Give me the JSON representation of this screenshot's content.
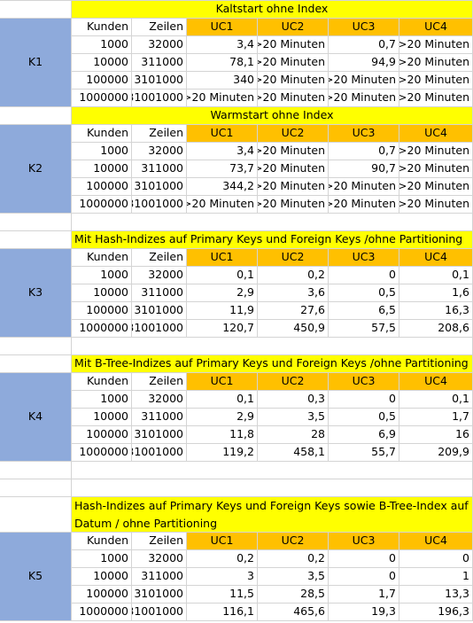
{
  "headers": {
    "kunden": "Kunden",
    "zeilen": "Zeilen",
    "uc": [
      "UC1",
      "UC2",
      "UC3",
      "UC4"
    ]
  },
  "sections": [
    {
      "label": "K1",
      "title": "Kaltstart ohne Index",
      "rows": [
        [
          "1000",
          "32000",
          "3,4",
          ">20 Minuten",
          "0,7",
          ">20 Minuten"
        ],
        [
          "10000",
          "311000",
          "78,1",
          ">20 Minuten",
          "94,9",
          ">20 Minuten"
        ],
        [
          "100000",
          "3101000",
          "340",
          ">20 Minuten",
          ">20 Minuten",
          ">20 Minuten"
        ],
        [
          "1000000",
          "31001000",
          ">20 Minuten",
          ">20 Minuten",
          ">20 Minuten",
          ">20 Minuten"
        ]
      ]
    },
    {
      "label": "K2",
      "title": "Warmstart ohne Index",
      "rows": [
        [
          "1000",
          "32000",
          "3,4",
          ">20 Minuten",
          "0,7",
          ">20 Minuten"
        ],
        [
          "10000",
          "311000",
          "73,7",
          ">20 Minuten",
          "90,7",
          ">20 Minuten"
        ],
        [
          "100000",
          "3101000",
          "344,2",
          ">20 Minuten",
          ">20 Minuten",
          ">20 Minuten"
        ],
        [
          "1000000",
          "31001000",
          ">20 Minuten",
          ">20 Minuten",
          ">20 Minuten",
          ">20 Minuten"
        ]
      ]
    },
    {
      "label": "K3",
      "title": "Mit Hash-Indizes auf Primary Keys und Foreign Keys /ohne Partitioning",
      "rows": [
        [
          "1000",
          "32000",
          "0,1",
          "0,2",
          "0",
          "0,1"
        ],
        [
          "10000",
          "311000",
          "2,9",
          "3,6",
          "0,5",
          "1,6"
        ],
        [
          "100000",
          "3101000",
          "11,9",
          "27,6",
          "6,5",
          "16,3"
        ],
        [
          "1000000",
          "31001000",
          "120,7",
          "450,9",
          "57,5",
          "208,6"
        ]
      ]
    },
    {
      "label": "K4",
      "title": "Mit B-Tree-Indizes auf Primary Keys und Foreign Keys /ohne Partitioning",
      "rows": [
        [
          "1000",
          "32000",
          "0,1",
          "0,3",
          "0",
          "0,1"
        ],
        [
          "10000",
          "311000",
          "2,9",
          "3,5",
          "0,5",
          "1,7"
        ],
        [
          "100000",
          "3101000",
          "11,8",
          "28",
          "6,9",
          "16"
        ],
        [
          "1000000",
          "31001000",
          "119,2",
          "458,1",
          "55,7",
          "209,9"
        ]
      ]
    },
    {
      "label": "K5",
      "title": "Hash-Indizes auf Primary Keys und Foreign Keys sowie B-Tree-Index auf Datum / ohne Partitioning",
      "rows": [
        [
          "1000",
          "32000",
          "0,2",
          "0,2",
          "0",
          "0"
        ],
        [
          "10000",
          "311000",
          "3",
          "3,5",
          "0",
          "1"
        ],
        [
          "100000",
          "3101000",
          "11,5",
          "28,5",
          "1,7",
          "13,3"
        ],
        [
          "1000000",
          "31001000",
          "116,1",
          "465,6",
          "19,3",
          "196,3"
        ]
      ]
    }
  ]
}
